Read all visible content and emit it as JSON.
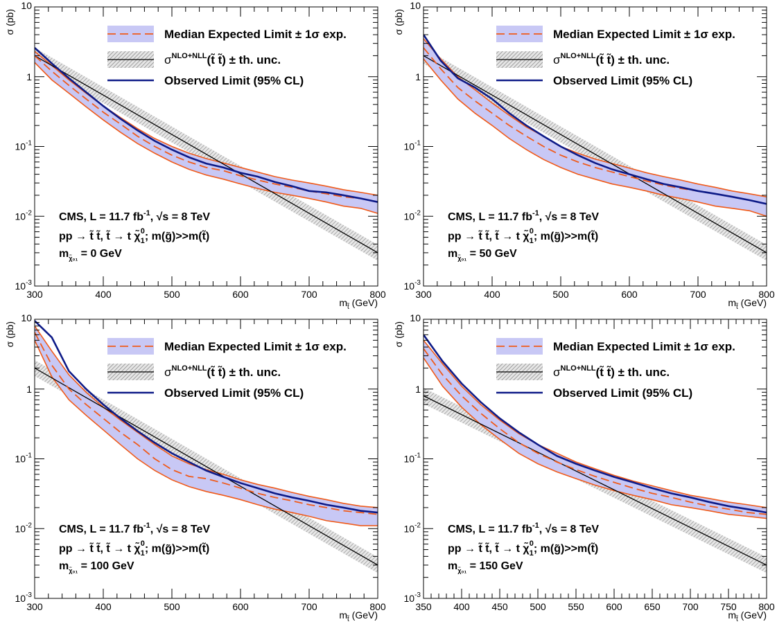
{
  "colors": {
    "band_fill": "#c8c8f5",
    "band_edge": "#f05a19",
    "expected_line": "#f05a19",
    "observed_line": "#0d1a87",
    "theory_band": "#b4b4b4",
    "theory_line": "#000000"
  },
  "legend": {
    "expected": "Median Expected Limit ± 1σ exp.",
    "theory_prefix": "σ",
    "theory_sup": "NLO+NLL",
    "theory_process": "(t̃ t̃) ± th. unc.",
    "observed": "Observed Limit (95% CL)"
  },
  "chart_data": [
    {
      "type": "line",
      "title": "",
      "xlabel_main": "m",
      "xlabel_sub": "t̃",
      "xlabel_unit": "(GeV)",
      "ylabel": "σ (pb)",
      "yscale": "log",
      "xlim": [
        300,
        800
      ],
      "ylim": [
        0.001,
        10
      ],
      "xticks": [
        300,
        400,
        500,
        600,
        700,
        800
      ],
      "text": {
        "line1": "CMS, L = 11.7 fb",
        "line1_sup": "-1",
        "line1_tail": ", √s = 8 TeV",
        "line2": "pp → t̃ t̃, t̃ → t χ̃",
        "line2_sub": "1",
        "line2_sup": "0",
        "line2_tail": "; m(g̃)>>m(t̃)",
        "line3_main": "m",
        "line3_sub": "χ̃₀₁",
        "line3_value": "= 0 GeV"
      },
      "series": [
        {
          "name": "Observed Limit (95% CL)",
          "x": [
            300,
            325,
            350,
            375,
            400,
            425,
            450,
            475,
            500,
            525,
            550,
            575,
            600,
            625,
            650,
            675,
            700,
            725,
            750,
            775,
            800
          ],
          "y": [
            2.6,
            1.55,
            0.95,
            0.6,
            0.38,
            0.25,
            0.17,
            0.12,
            0.09,
            0.07,
            0.057,
            0.05,
            0.042,
            0.037,
            0.031,
            0.027,
            0.023,
            0.022,
            0.02,
            0.018,
            0.016
          ]
        },
        {
          "name": "Median Expected Limit",
          "x": [
            300,
            325,
            350,
            375,
            400,
            425,
            450,
            475,
            500,
            525,
            550,
            575,
            600,
            625,
            650,
            675,
            700,
            725,
            750,
            775,
            800
          ],
          "y": [
            2.0,
            1.2,
            0.75,
            0.48,
            0.31,
            0.21,
            0.14,
            0.1,
            0.075,
            0.06,
            0.05,
            0.045,
            0.038,
            0.033,
            0.029,
            0.026,
            0.023,
            0.021,
            0.019,
            0.018,
            0.016
          ]
        },
        {
          "name": "Expected +1σ",
          "x": [
            300,
            325,
            350,
            375,
            400,
            425,
            450,
            475,
            500,
            525,
            550,
            575,
            600,
            625,
            650,
            675,
            700,
            725,
            750,
            775,
            800
          ],
          "y": [
            2.3,
            1.45,
            0.9,
            0.58,
            0.38,
            0.26,
            0.18,
            0.13,
            0.1,
            0.08,
            0.067,
            0.058,
            0.05,
            0.043,
            0.037,
            0.033,
            0.03,
            0.027,
            0.024,
            0.022,
            0.02
          ]
        },
        {
          "name": "Expected −1σ",
          "x": [
            300,
            325,
            350,
            375,
            400,
            425,
            450,
            475,
            500,
            525,
            550,
            575,
            600,
            625,
            650,
            675,
            700,
            725,
            750,
            775,
            800
          ],
          "y": [
            1.6,
            0.9,
            0.58,
            0.37,
            0.24,
            0.16,
            0.11,
            0.08,
            0.06,
            0.047,
            0.039,
            0.034,
            0.029,
            0.025,
            0.022,
            0.02,
            0.018,
            0.016,
            0.014,
            0.013,
            0.011
          ]
        },
        {
          "name": "σ NLO+NLL",
          "x": [
            300,
            800
          ],
          "y": [
            2.0,
            0.003
          ]
        }
      ]
    },
    {
      "type": "line",
      "title": "",
      "xlabel_main": "m",
      "xlabel_sub": "t̃",
      "xlabel_unit": "(GeV)",
      "ylabel": "σ (pb)",
      "yscale": "log",
      "xlim": [
        300,
        800
      ],
      "ylim": [
        0.001,
        10
      ],
      "xticks": [
        300,
        400,
        500,
        600,
        700,
        800
      ],
      "text": {
        "line1": "CMS, L = 11.7 fb",
        "line1_sup": "-1",
        "line1_tail": ", √s = 8 TeV",
        "line2": "pp → t̃ t̃, t̃ → t χ̃",
        "line2_sub": "1",
        "line2_sup": "0",
        "line2_tail": "; m(g̃)>>m(t̃)",
        "line3_main": "m",
        "line3_sub": "χ̃₀₁",
        "line3_value": "= 50 GeV"
      },
      "series": [
        {
          "name": "Observed Limit (95% CL)",
          "x": [
            300,
            325,
            350,
            375,
            400,
            425,
            450,
            475,
            500,
            525,
            550,
            575,
            600,
            625,
            650,
            675,
            700,
            725,
            750,
            775,
            800
          ],
          "y": [
            4.0,
            1.7,
            0.95,
            0.7,
            0.48,
            0.3,
            0.2,
            0.14,
            0.1,
            0.075,
            0.058,
            0.047,
            0.04,
            0.034,
            0.029,
            0.026,
            0.023,
            0.021,
            0.019,
            0.017,
            0.015
          ]
        },
        {
          "name": "Median Expected Limit",
          "x": [
            300,
            325,
            350,
            375,
            400,
            425,
            450,
            475,
            500,
            525,
            550,
            575,
            600,
            625,
            650,
            675,
            700,
            725,
            750,
            775,
            800
          ],
          "y": [
            2.6,
            1.3,
            0.7,
            0.45,
            0.3,
            0.2,
            0.14,
            0.1,
            0.075,
            0.06,
            0.05,
            0.043,
            0.037,
            0.032,
            0.028,
            0.025,
            0.023,
            0.021,
            0.019,
            0.017,
            0.015
          ]
        },
        {
          "name": "Expected +1σ",
          "x": [
            300,
            325,
            350,
            375,
            400,
            425,
            450,
            475,
            500,
            525,
            550,
            575,
            600,
            625,
            650,
            675,
            700,
            725,
            750,
            775,
            800
          ],
          "y": [
            3.5,
            1.8,
            1.0,
            0.65,
            0.42,
            0.28,
            0.19,
            0.14,
            0.1,
            0.08,
            0.066,
            0.057,
            0.049,
            0.042,
            0.037,
            0.033,
            0.029,
            0.026,
            0.023,
            0.021,
            0.019
          ]
        },
        {
          "name": "Expected −1σ",
          "x": [
            300,
            325,
            350,
            375,
            400,
            425,
            450,
            475,
            500,
            525,
            550,
            575,
            600,
            625,
            650,
            675,
            700,
            725,
            750,
            775,
            800
          ],
          "y": [
            1.8,
            0.9,
            0.48,
            0.3,
            0.2,
            0.13,
            0.09,
            0.065,
            0.05,
            0.04,
            0.034,
            0.029,
            0.026,
            0.023,
            0.02,
            0.018,
            0.016,
            0.014,
            0.013,
            0.012,
            0.01
          ]
        },
        {
          "name": "σ NLO+NLL",
          "x": [
            300,
            800
          ],
          "y": [
            2.0,
            0.003
          ]
        }
      ]
    },
    {
      "type": "line",
      "title": "",
      "xlabel_main": "m",
      "xlabel_sub": "t̃",
      "xlabel_unit": "(GeV)",
      "ylabel": "σ (pb)",
      "yscale": "log",
      "xlim": [
        300,
        800
      ],
      "ylim": [
        0.001,
        10
      ],
      "xticks": [
        300,
        400,
        500,
        600,
        700,
        800
      ],
      "text": {
        "line1": "CMS, L = 11.7 fb",
        "line1_sup": "-1",
        "line1_tail": ", √s = 8 TeV",
        "line2": "pp → t̃ t̃, t̃ → t χ̃",
        "line2_sub": "1",
        "line2_sup": "0",
        "line2_tail": "; m(g̃)>>m(t̃)",
        "line3_main": "m",
        "line3_sub": "χ̃₀₁",
        "line3_value": "= 100 GeV"
      },
      "series": [
        {
          "name": "Observed Limit (95% CL)",
          "x": [
            300,
            325,
            350,
            375,
            400,
            425,
            450,
            475,
            500,
            525,
            550,
            575,
            600,
            625,
            650,
            675,
            700,
            725,
            750,
            775,
            800
          ],
          "y": [
            9.5,
            5.5,
            1.8,
            1.0,
            0.6,
            0.38,
            0.25,
            0.17,
            0.12,
            0.09,
            0.068,
            0.055,
            0.045,
            0.038,
            0.032,
            0.028,
            0.025,
            0.022,
            0.02,
            0.018,
            0.017
          ]
        },
        {
          "name": "Median Expected Limit",
          "x": [
            300,
            325,
            350,
            375,
            400,
            425,
            450,
            475,
            500,
            525,
            550,
            575,
            600,
            625,
            650,
            675,
            700,
            725,
            750,
            775,
            800
          ],
          "y": [
            6.5,
            2.2,
            1.0,
            0.6,
            0.38,
            0.24,
            0.16,
            0.1,
            0.07,
            0.056,
            0.052,
            0.045,
            0.038,
            0.032,
            0.028,
            0.025,
            0.022,
            0.02,
            0.018,
            0.017,
            0.016
          ]
        },
        {
          "name": "Expected +1σ",
          "x": [
            300,
            325,
            350,
            375,
            400,
            425,
            450,
            475,
            500,
            525,
            550,
            575,
            600,
            625,
            650,
            675,
            700,
            725,
            750,
            775,
            800
          ],
          "y": [
            8.0,
            3.5,
            1.6,
            0.9,
            0.55,
            0.36,
            0.24,
            0.16,
            0.11,
            0.085,
            0.07,
            0.06,
            0.05,
            0.043,
            0.038,
            0.033,
            0.029,
            0.026,
            0.023,
            0.021,
            0.02
          ]
        },
        {
          "name": "Expected −1σ",
          "x": [
            300,
            325,
            350,
            375,
            400,
            425,
            450,
            475,
            500,
            525,
            550,
            575,
            600,
            625,
            650,
            675,
            700,
            725,
            750,
            775,
            800
          ],
          "y": [
            5.0,
            1.5,
            0.7,
            0.42,
            0.26,
            0.16,
            0.1,
            0.068,
            0.05,
            0.04,
            0.034,
            0.03,
            0.026,
            0.022,
            0.019,
            0.017,
            0.015,
            0.013,
            0.012,
            0.011,
            0.011
          ]
        },
        {
          "name": "σ NLO+NLL",
          "x": [
            300,
            800
          ],
          "y": [
            2.0,
            0.003
          ]
        }
      ]
    },
    {
      "type": "line",
      "title": "",
      "xlabel_main": "m",
      "xlabel_sub": "t̃",
      "xlabel_unit": "(GeV)",
      "ylabel": "σ (pb)",
      "yscale": "log",
      "xlim": [
        350,
        800
      ],
      "ylim": [
        0.001,
        10
      ],
      "xticks": [
        350,
        400,
        450,
        500,
        550,
        600,
        650,
        700,
        750,
        800
      ],
      "text": {
        "line1": "CMS, L = 11.7 fb",
        "line1_sup": "-1",
        "line1_tail": ", √s = 8 TeV",
        "line2": "pp → t̃ t̃, t̃ → t χ̃",
        "line2_sub": "1",
        "line2_sup": "0",
        "line2_tail": "; m(g̃)>>m(t̃)",
        "line3_main": "m",
        "line3_sub": "χ̃₀₁",
        "line3_value": "= 150 GeV"
      },
      "series": [
        {
          "name": "Observed Limit (95% CL)",
          "x": [
            350,
            375,
            400,
            425,
            450,
            475,
            500,
            525,
            550,
            575,
            600,
            625,
            650,
            675,
            700,
            725,
            750,
            775,
            800
          ],
          "y": [
            6.0,
            2.5,
            1.2,
            0.65,
            0.38,
            0.24,
            0.16,
            0.11,
            0.085,
            0.068,
            0.055,
            0.046,
            0.038,
            0.032,
            0.028,
            0.024,
            0.021,
            0.019,
            0.017
          ]
        },
        {
          "name": "Median Expected Limit",
          "x": [
            350,
            375,
            400,
            425,
            450,
            475,
            500,
            525,
            550,
            575,
            600,
            625,
            650,
            675,
            700,
            725,
            750,
            775,
            800
          ],
          "y": [
            3.8,
            1.6,
            0.8,
            0.45,
            0.27,
            0.17,
            0.12,
            0.09,
            0.07,
            0.056,
            0.046,
            0.038,
            0.032,
            0.028,
            0.024,
            0.021,
            0.019,
            0.017,
            0.016
          ]
        },
        {
          "name": "Expected +1σ",
          "x": [
            350,
            375,
            400,
            425,
            450,
            475,
            500,
            525,
            550,
            575,
            600,
            625,
            650,
            675,
            700,
            725,
            750,
            775,
            800
          ],
          "y": [
            5.0,
            2.3,
            1.1,
            0.6,
            0.36,
            0.23,
            0.16,
            0.12,
            0.09,
            0.072,
            0.058,
            0.048,
            0.041,
            0.035,
            0.03,
            0.027,
            0.024,
            0.022,
            0.02
          ]
        },
        {
          "name": "Expected −1σ",
          "x": [
            350,
            375,
            400,
            425,
            450,
            475,
            500,
            525,
            550,
            575,
            600,
            625,
            650,
            675,
            700,
            725,
            750,
            775,
            800
          ],
          "y": [
            2.8,
            1.1,
            0.55,
            0.31,
            0.19,
            0.12,
            0.085,
            0.065,
            0.052,
            0.042,
            0.035,
            0.03,
            0.026,
            0.022,
            0.02,
            0.018,
            0.016,
            0.015,
            0.014
          ]
        },
        {
          "name": "σ NLO+NLL",
          "x": [
            350,
            800
          ],
          "y": [
            0.8,
            0.003
          ]
        }
      ]
    }
  ]
}
